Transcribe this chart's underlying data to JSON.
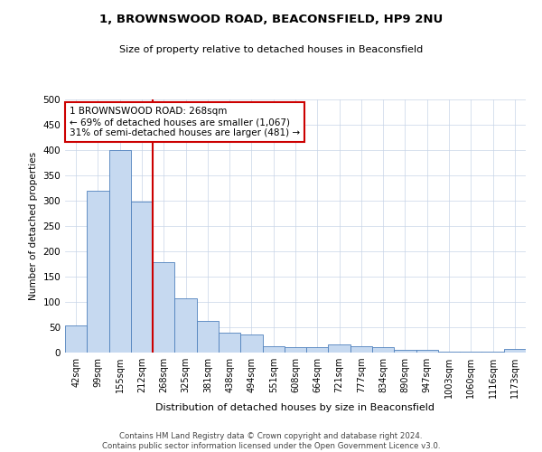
{
  "title": "1, BROWNSWOOD ROAD, BEACONSFIELD, HP9 2NU",
  "subtitle": "Size of property relative to detached houses in Beaconsfield",
  "xlabel": "Distribution of detached houses by size in Beaconsfield",
  "ylabel": "Number of detached properties",
  "footer_line1": "Contains HM Land Registry data © Crown copyright and database right 2024.",
  "footer_line2": "Contains public sector information licensed under the Open Government Licence v3.0.",
  "categories": [
    "42sqm",
    "99sqm",
    "155sqm",
    "212sqm",
    "268sqm",
    "325sqm",
    "381sqm",
    "438sqm",
    "494sqm",
    "551sqm",
    "608sqm",
    "664sqm",
    "721sqm",
    "777sqm",
    "834sqm",
    "890sqm",
    "947sqm",
    "1003sqm",
    "1060sqm",
    "1116sqm",
    "1173sqm"
  ],
  "values": [
    53,
    320,
    400,
    298,
    178,
    108,
    63,
    40,
    35,
    12,
    10,
    10,
    16,
    12,
    10,
    5,
    5,
    2,
    1,
    1,
    8
  ],
  "bar_color": "#c6d9f0",
  "bar_edge_color": "#4f81bd",
  "vline_bin": 4,
  "vline_color": "#cc0000",
  "annotation_text": "1 BROWNSWOOD ROAD: 268sqm\n← 69% of detached houses are smaller (1,067)\n31% of semi-detached houses are larger (481) →",
  "annotation_box_color": "#cc0000",
  "ylim": [
    0,
    500
  ],
  "yticks": [
    0,
    50,
    100,
    150,
    200,
    250,
    300,
    350,
    400,
    450,
    500
  ],
  "background_color": "#ffffff",
  "grid_color": "#c8d4e8",
  "figsize": [
    6.0,
    5.0
  ],
  "dpi": 100
}
